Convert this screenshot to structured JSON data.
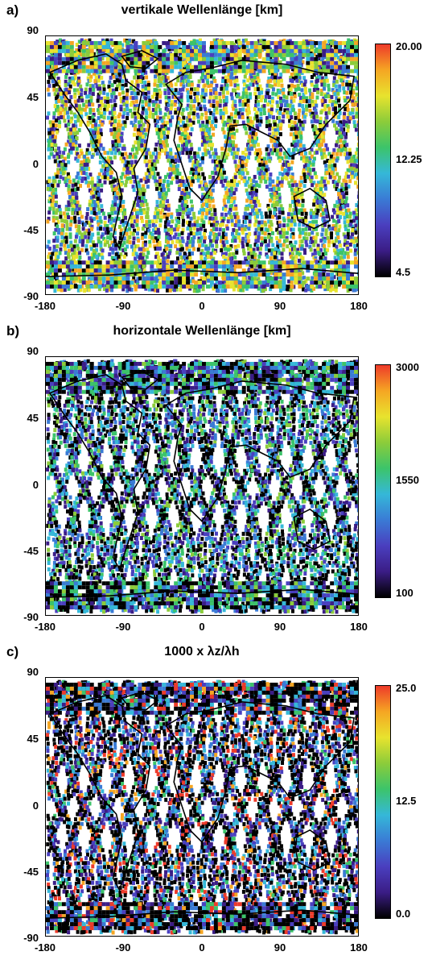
{
  "panels": [
    {
      "label": "a)",
      "title": "vertikale Wellenlänge [km]",
      "colorbar": {
        "max": "20.00",
        "mid": "12.25",
        "min": "4.5"
      }
    },
    {
      "label": "b)",
      "title": "horizontale Wellenlänge [km]",
      "colorbar": {
        "max": "3000",
        "mid": "1550",
        "min": "100"
      }
    },
    {
      "label": "c)",
      "title": "1000 x  λz/λh",
      "colorbar": {
        "max": "25.0",
        "mid": "12.5",
        "min": "0.0"
      }
    }
  ],
  "axes": {
    "y_ticks": [
      "90",
      "45",
      "0",
      "-45",
      "-90"
    ],
    "x_ticks": [
      "-180",
      "-90",
      "0",
      "90",
      "180"
    ]
  },
  "colors": {
    "scale": [
      "#000000",
      "#3b1d86",
      "#4a3fbf",
      "#3a7bd5",
      "#35b8d8",
      "#3cc46a",
      "#8ccc3a",
      "#e8e32e",
      "#f5a623",
      "#ee3b2a"
    ]
  }
}
